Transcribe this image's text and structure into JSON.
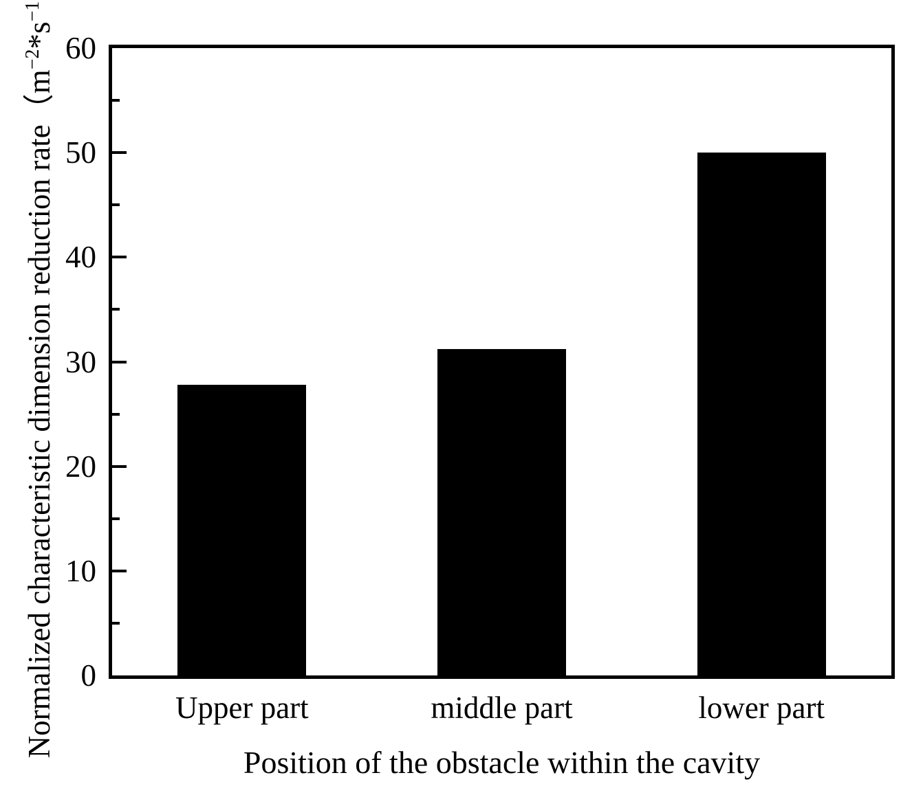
{
  "figure": {
    "background_color": "#ffffff",
    "foreground_color": "#000000"
  },
  "chart_data": {
    "type": "bar",
    "title": "",
    "categories": [
      "Upper part",
      "middle part",
      "lower part"
    ],
    "values": [
      27.8,
      31.2,
      50.0
    ],
    "xlabel": "Position of the obstacle within the cavity",
    "ylabel": "Normalized characteristic dimension reduction rate （m⁻²*s⁻¹）",
    "ylabel_text": "Normalized characteristic dimension reduction rate",
    "ylabel_unit": {
      "open": "（",
      "base1": "m",
      "exp1": "−2",
      "star": "*",
      "base2": "s",
      "exp2": "−1",
      "close": "）"
    },
    "ylim": [
      0,
      60
    ],
    "yticks_major": [
      0,
      10,
      20,
      30,
      40,
      50,
      60
    ],
    "yticks_minor": [
      5,
      15,
      25,
      35,
      45,
      55
    ],
    "bar_color": "#000000",
    "axis_color": "#000000",
    "grid": false,
    "legend": null
  }
}
